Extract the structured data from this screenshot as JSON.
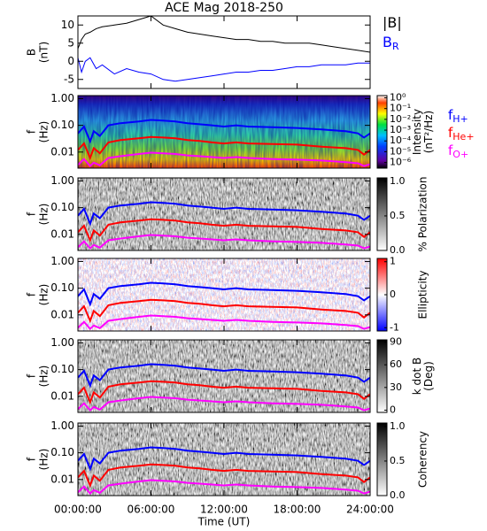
{
  "title": "ACE Mag 2018-250",
  "xaxis": {
    "xlim": [
      0,
      24
    ],
    "xlabel": "Time (UT)",
    "xticks": [
      {
        "value": 0,
        "label": "00:00:00"
      },
      {
        "value": 6,
        "label": "06:00:00"
      },
      {
        "value": 12,
        "label": "12:00:00"
      },
      {
        "value": 18,
        "label": "18:00:00"
      },
      {
        "value": 24,
        "label": "24:00:00"
      }
    ]
  },
  "chart_data": [
    {
      "type": "line",
      "ylabel": [
        "B",
        "(nT)"
      ],
      "ylim": [
        -7.5,
        12.5
      ],
      "yticks": [
        -5,
        0,
        5,
        10
      ],
      "x": [
        0,
        0.3,
        0.6,
        1,
        1.5,
        2,
        3,
        4,
        5,
        6,
        7,
        8,
        9,
        10,
        11,
        12,
        13,
        14,
        15,
        16,
        17,
        18,
        19,
        20,
        21,
        22,
        23,
        24
      ],
      "series": [
        {
          "name": "|B|",
          "color": "#000000",
          "values": [
            3.5,
            6,
            7.5,
            8,
            9,
            9.5,
            10,
            10.5,
            11.5,
            12.5,
            10,
            9,
            8,
            7.5,
            7,
            6.5,
            6,
            6,
            5.5,
            5.5,
            5,
            5,
            5,
            4.5,
            4,
            3.5,
            3,
            2.5
          ]
        },
        {
          "name": "B",
          "subscript": "R",
          "color": "#0000ff",
          "values": [
            1,
            -3,
            0,
            1,
            -2,
            -1,
            -3.5,
            -2,
            -3,
            -3.5,
            -5,
            -5.5,
            -5,
            -4.5,
            -4,
            -3.5,
            -3,
            -3,
            -2.5,
            -2.5,
            -2,
            -1.5,
            -1.5,
            -1,
            -1,
            -1,
            -0.5,
            -0.5
          ]
        }
      ]
    },
    {
      "type": "spectrogram",
      "colormap": "rainbow",
      "ylabel": [
        "f",
        "(Hz)"
      ],
      "log": true,
      "ylim": [
        0.0025,
        1.3
      ],
      "yticks": [
        {
          "value": 1,
          "label": "1.00"
        },
        {
          "value": 0.1,
          "label": "0.10"
        },
        {
          "value": 0.01,
          "label": "0.01"
        }
      ],
      "clabel": [
        "Intensity",
        "(nT²/Hz)"
      ],
      "clog": true,
      "clim": [
        3e-07,
        1.6
      ],
      "cticks": [
        {
          "value": 1,
          "label": "10⁰"
        },
        {
          "value": 0.1,
          "label": "10⁻¹"
        },
        {
          "value": 0.01,
          "label": "10⁻²"
        },
        {
          "value": 0.001,
          "label": "10⁻³"
        },
        {
          "value": 0.0001,
          "label": "10⁻⁴"
        },
        {
          "value": 1e-05,
          "label": "10⁻⁵"
        },
        {
          "value": 1e-06,
          "label": "10⁻⁶"
        }
      ],
      "x": [
        0,
        0.5,
        1,
        1.3,
        1.8,
        2.5,
        3.5,
        5,
        6,
        7,
        8,
        9,
        10,
        11,
        12,
        13,
        14,
        16,
        18,
        20,
        22,
        23,
        23.5,
        24
      ],
      "series": [
        {
          "name": "f",
          "subscript": "H+",
          "color": "#0000ff",
          "values": [
            0.05,
            0.09,
            0.025,
            0.06,
            0.04,
            0.1,
            0.12,
            0.14,
            0.16,
            0.15,
            0.14,
            0.12,
            0.11,
            0.1,
            0.09,
            0.1,
            0.09,
            0.085,
            0.08,
            0.07,
            0.06,
            0.05,
            0.035,
            0.05
          ]
        },
        {
          "name": "f",
          "subscript": "He+",
          "color": "#ff0000",
          "values": [
            0.012,
            0.021,
            0.006,
            0.014,
            0.009,
            0.023,
            0.028,
            0.033,
            0.037,
            0.035,
            0.033,
            0.028,
            0.026,
            0.023,
            0.021,
            0.023,
            0.021,
            0.02,
            0.019,
            0.016,
            0.014,
            0.012,
            0.008,
            0.012
          ]
        },
        {
          "name": "f",
          "subscript": "O+",
          "color": "#ff00ff",
          "values": [
            0.0033,
            0.0055,
            0.003,
            0.004,
            0.0032,
            0.006,
            0.007,
            0.0085,
            0.0095,
            0.009,
            0.0085,
            0.0075,
            0.007,
            0.0065,
            0.006,
            0.0065,
            0.006,
            0.0055,
            0.0052,
            0.0048,
            0.0042,
            0.0038,
            0.003,
            0.0035
          ]
        }
      ]
    },
    {
      "type": "spectrogram",
      "colormap": "gray",
      "ylabel": [
        "f",
        "(Hz)"
      ],
      "log": true,
      "ylim": [
        0.0025,
        1.3
      ],
      "yticks": [
        {
          "value": 1,
          "label": "1.00"
        },
        {
          "value": 0.1,
          "label": "0.10"
        },
        {
          "value": 0.01,
          "label": "0.01"
        }
      ],
      "clabel": [
        "% Polarization"
      ],
      "clim": [
        0,
        1.05
      ],
      "cticks": [
        {
          "value": 1,
          "label": "1.0"
        },
        {
          "value": 0.5,
          "label": "0.5"
        },
        {
          "value": 0,
          "label": "0.0"
        }
      ]
    },
    {
      "type": "spectrogram",
      "colormap": "bwr",
      "ylabel": [
        "f",
        "(Hz)"
      ],
      "log": true,
      "ylim": [
        0.0025,
        1.3
      ],
      "yticks": [
        {
          "value": 1,
          "label": "1.00"
        },
        {
          "value": 0.1,
          "label": "0.10"
        },
        {
          "value": 0.01,
          "label": "0.01"
        }
      ],
      "clabel": [
        "Ellipticity"
      ],
      "clim": [
        -1.1,
        1.1
      ],
      "cticks": [
        1,
        0,
        -1
      ]
    },
    {
      "type": "spectrogram",
      "colormap": "gray",
      "ylabel": [
        "f",
        "(Hz)"
      ],
      "log": true,
      "ylim": [
        0.0025,
        1.3
      ],
      "yticks": [
        {
          "value": 1,
          "label": "1.00"
        },
        {
          "value": 0.1,
          "label": "0.10"
        },
        {
          "value": 0.01,
          "label": "0.01"
        }
      ],
      "clabel": [
        "k dot B",
        "(Deg)"
      ],
      "clim": [
        -3,
        93
      ],
      "cticks": [
        90,
        60,
        30,
        0
      ]
    },
    {
      "type": "spectrogram",
      "colormap": "gray",
      "ylabel": [
        "f",
        "(Hz)"
      ],
      "log": true,
      "ylim": [
        0.0025,
        1.3
      ],
      "yticks": [
        {
          "value": 1,
          "label": "1.00"
        },
        {
          "value": 0.1,
          "label": "0.10"
        },
        {
          "value": 0.01,
          "label": "0.01"
        }
      ],
      "clabel": [
        "Coherency"
      ],
      "clim": [
        0,
        1.05
      ],
      "cticks": [
        {
          "value": 1,
          "label": "1.0"
        },
        {
          "value": 0.5,
          "label": "0.5"
        },
        {
          "value": 0,
          "label": "0.0"
        }
      ]
    }
  ]
}
